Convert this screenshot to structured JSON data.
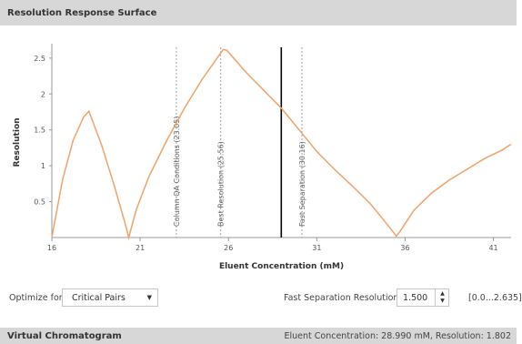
{
  "panel_title": "Resolution Response Surface",
  "chart_data": {
    "type": "line",
    "title": "",
    "xlabel": "Eluent Concentration (mM)",
    "ylabel": "Resolution",
    "xlim": [
      16,
      42
    ],
    "ylim": [
      0,
      2.65
    ],
    "x_ticks": [
      16,
      21,
      26,
      31,
      36,
      41
    ],
    "y_ticks": [
      0.5,
      1,
      1.5,
      2,
      2.5
    ],
    "series": [
      {
        "color": "#f0a26a",
        "x": [
          16.0,
          16.6,
          17.2,
          17.8,
          18.1,
          18.8,
          19.5,
          20.2,
          20.35,
          20.8,
          21.5,
          22.5,
          23.5,
          24.5,
          25.5,
          25.7,
          25.9,
          27.0,
          28.0,
          29.0,
          30.0,
          31.0,
          32.0,
          33.0,
          34.0,
          35.0,
          35.5,
          35.7,
          36.5,
          37.5,
          38.5,
          39.5,
          40.5,
          41.5,
          42.0
        ],
        "y": [
          0.0,
          0.8,
          1.35,
          1.68,
          1.76,
          1.3,
          0.75,
          0.15,
          0.0,
          0.4,
          0.85,
          1.35,
          1.8,
          2.2,
          2.55,
          2.62,
          2.61,
          2.3,
          2.05,
          1.8,
          1.5,
          1.2,
          0.95,
          0.72,
          0.48,
          0.18,
          0.02,
          0.08,
          0.38,
          0.62,
          0.8,
          0.95,
          1.1,
          1.22,
          1.3
        ]
      }
    ],
    "annotations": [
      {
        "x": 23.05,
        "label": "Column QA Conditions (23.05)"
      },
      {
        "x": 25.56,
        "label": "Best Resolution (25.56)"
      },
      {
        "x": 30.16,
        "label": "Fast Separation (30.16)"
      }
    ],
    "cursor_x": 28.99,
    "grid": false,
    "legend": "none"
  },
  "controls": {
    "optimize_label": "Optimize for:",
    "optimize_value": "Critical Pairs",
    "fast_sep_label": "Fast Separation Resolution:",
    "fast_sep_value": "1.500",
    "range": "[0.0...2.635]"
  },
  "bottom_panel": {
    "title": "Virtual Chromatogram",
    "status": "Eluent Concentration: 28.990 mM, Resolution: 1.802"
  },
  "icons": {
    "dropdown": "caret-down-icon",
    "spin_up": "caret-up-icon",
    "spin_down": "caret-down-icon"
  }
}
